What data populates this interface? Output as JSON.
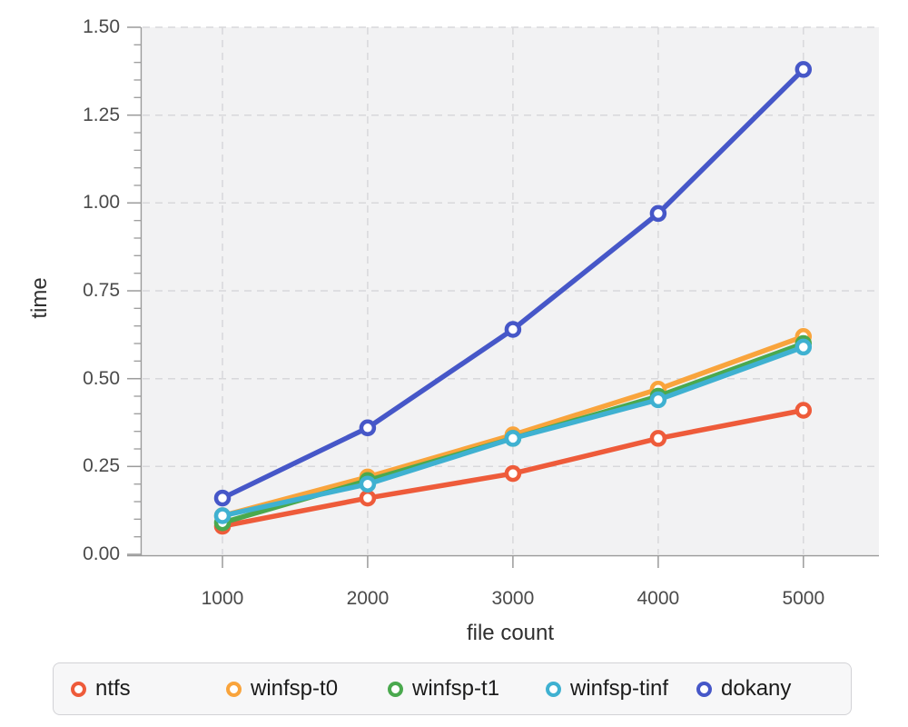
{
  "style": {
    "plot_bg": "#f2f2f3",
    "grid_color": "#d8d8db",
    "axis_color": "#9b9b9b",
    "tick_label_color": "#4a4a4a",
    "axis_title_color": "#2f2f2f",
    "legend_bg": "#f7f7f8",
    "legend_border": "#d2d2d6",
    "legend_text_color": "#1b1b1b",
    "marker_fill": "#ffffff"
  },
  "chart_data": {
    "type": "line",
    "title": "",
    "xlabel": "file count",
    "ylabel": "time",
    "x": [
      1000,
      2000,
      3000,
      4000,
      5000
    ],
    "series": [
      {
        "name": "ntfs",
        "color": "#ee5b3a",
        "values": [
          0.08,
          0.16,
          0.23,
          0.33,
          0.41
        ]
      },
      {
        "name": "winfsp-t0",
        "color": "#f9a43c",
        "values": [
          0.11,
          0.22,
          0.34,
          0.47,
          0.62
        ]
      },
      {
        "name": "winfsp-t1",
        "color": "#4aa94e",
        "values": [
          0.09,
          0.21,
          0.33,
          0.45,
          0.6
        ]
      },
      {
        "name": "winfsp-tinf",
        "color": "#3fb1d1",
        "values": [
          0.11,
          0.2,
          0.33,
          0.44,
          0.59
        ]
      },
      {
        "name": "dokany",
        "color": "#4657c8",
        "values": [
          0.16,
          0.36,
          0.64,
          0.97,
          1.38
        ]
      }
    ],
    "xlim": [
      450,
      5520
    ],
    "ylim": [
      0,
      1.5
    ],
    "x_ticks": [
      1000,
      2000,
      3000,
      4000,
      5000
    ],
    "x_tick_labels": [
      "1000",
      "2000",
      "3000",
      "4000",
      "5000"
    ],
    "y_ticks": [
      0,
      0.25,
      0.5,
      0.75,
      1,
      1.25,
      1.5
    ],
    "y_tick_labels": [
      "0.00",
      "0.25",
      "0.50",
      "0.75",
      "1.00",
      "1.25",
      "1.50"
    ],
    "y_minor_tick_step": 0.05,
    "grid": true,
    "grid_style": "dashed",
    "legend_position": "bottom",
    "legend_labels": [
      "ntfs",
      "winfsp-t0",
      "winfsp-t1",
      "winfsp-tinf",
      "dokany"
    ]
  }
}
